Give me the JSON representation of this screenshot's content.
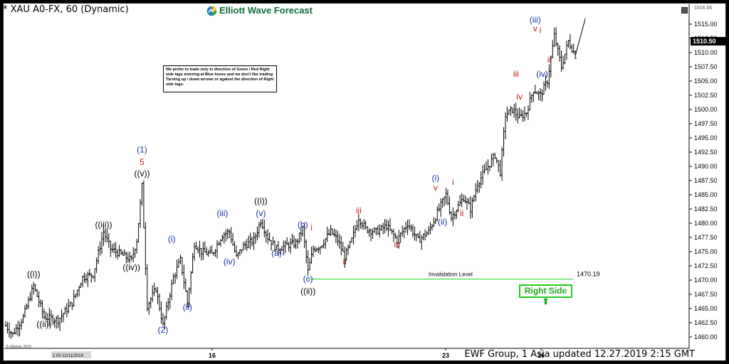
{
  "header": {
    "title": "* XAU A0-FX, 60 (Dynamic)",
    "brand": "Elliott Wave Forecast",
    "logo_icon": "ewf-logo-icon"
  },
  "note": "We prefer to trade only in direction of Green / Red Right side tags entering at Blue boxes and we don't like trading Turning up / down arrows or against the direction of Right side tags.",
  "invalidation": {
    "label": "Invalidation Level",
    "value": "1470.19"
  },
  "right_side": {
    "label": "Right Side",
    "icon": "up-arrow-icon",
    "color": "#1fd01f"
  },
  "footer": "EWF Group, 1 Asia  updated 12.27.2019 2:15 GMT",
  "price_tag": "1510.50",
  "top_price": "1516.56",
  "bottom_left": [
    "1:00 12/11/2019",
    "© eSignal, 2019"
  ],
  "colors": {
    "blue": "#1a2fa8",
    "red": "#c81e1e",
    "black": "#000000",
    "green": "#1fd01f"
  },
  "chart_data": {
    "type": "ohlc",
    "symbol": "XAU A0-FX",
    "interval": "60",
    "ylim": [
      1458.5,
      1517.5
    ],
    "y_ticks": [
      "1515.00",
      "1512.50",
      "1510.00",
      "1507.50",
      "1505.00",
      "1502.50",
      "1500.00",
      "1497.50",
      "1495.00",
      "1492.50",
      "1490.00",
      "1487.50",
      "1485.00",
      "1482.50",
      "1480.00",
      "1477.50",
      "1475.00",
      "1472.50",
      "1470.00",
      "1467.50",
      "1465.00",
      "1462.50",
      "1460.00"
    ],
    "x_ticks": [
      "16",
      "23",
      "26"
    ],
    "bar_count": 190,
    "path": [
      [
        0,
        1462.0
      ],
      [
        4,
        1460.5
      ],
      [
        10,
        1463.5
      ],
      [
        16,
        1469.0
      ],
      [
        22,
        1463.5
      ],
      [
        30,
        1463.0
      ],
      [
        38,
        1466.0
      ],
      [
        44,
        1470.5
      ],
      [
        50,
        1471.0
      ],
      [
        56,
        1478.5
      ],
      [
        60,
        1475.5
      ],
      [
        66,
        1474.5
      ],
      [
        72,
        1473.5
      ],
      [
        75,
        1477.0
      ],
      [
        78,
        1486.5
      ],
      [
        81,
        1465.5
      ],
      [
        86,
        1468.5
      ],
      [
        90,
        1462.0
      ],
      [
        96,
        1470.5
      ],
      [
        100,
        1473.5
      ],
      [
        104,
        1466.0
      ],
      [
        108,
        1476.5
      ],
      [
        112,
        1475.0
      ],
      [
        118,
        1474.5
      ],
      [
        124,
        1478.0
      ],
      [
        128,
        1478.5
      ],
      [
        132,
        1474.0
      ],
      [
        136,
        1476.0
      ],
      [
        142,
        1477.0
      ],
      [
        146,
        1480.5
      ],
      [
        150,
        1477.5
      ],
      [
        155,
        1475.5
      ],
      [
        160,
        1476.0
      ],
      [
        166,
        1476.5
      ],
      [
        170,
        1479.0
      ],
      [
        173,
        1471.5
      ],
      [
        176,
        1475.5
      ],
      [
        180,
        1476.0
      ],
      [
        186,
        1478.5
      ],
      [
        190,
        1477.0
      ],
      [
        194,
        1474.0
      ],
      [
        198,
        1477.0
      ],
      [
        202,
        1481.0
      ],
      [
        206,
        1479.0
      ],
      [
        212,
        1478.5
      ],
      [
        218,
        1479.5
      ],
      [
        224,
        1477.0
      ],
      [
        230,
        1480.0
      ],
      [
        236,
        1477.0
      ],
      [
        242,
        1478.5
      ],
      [
        248,
        1482.5
      ],
      [
        252,
        1485.0
      ],
      [
        255,
        1481.0
      ],
      [
        258,
        1482.5
      ],
      [
        262,
        1484.5
      ],
      [
        266,
        1482.5
      ],
      [
        270,
        1487.0
      ],
      [
        276,
        1490.0
      ],
      [
        280,
        1492.0
      ],
      [
        283,
        1489.0
      ],
      [
        286,
        1499.0
      ],
      [
        290,
        1500.0
      ],
      [
        294,
        1498.5
      ],
      [
        298,
        1499.5
      ],
      [
        302,
        1503.5
      ],
      [
        306,
        1502.5
      ],
      [
        310,
        1505.0
      ],
      [
        314,
        1513.0
      ],
      [
        318,
        1507.5
      ],
      [
        322,
        1512.0
      ],
      [
        326,
        1509.5
      ],
      [
        330,
        1514.5
      ]
    ],
    "gap_extension_until": 330,
    "invalidation_level": 1470.19,
    "wave_labels": [
      {
        "text": "((i))",
        "price": 1470.3,
        "idx": 16,
        "color": "black",
        "pos": "above"
      },
      {
        "text": "((ii))",
        "price": 1463.0,
        "idx": 22,
        "color": "black",
        "pos": "below"
      },
      {
        "text": "((iii))",
        "price": 1479.0,
        "idx": 56,
        "color": "black",
        "pos": "above"
      },
      {
        "text": "((iv))",
        "price": 1473.0,
        "idx": 72,
        "color": "black",
        "pos": "below"
      },
      {
        "text": "((v))",
        "price": 1488.0,
        "idx": 78,
        "color": "black",
        "pos": "above"
      },
      {
        "text": "5",
        "price": 1490.0,
        "idx": 78,
        "color": "red",
        "pos": "above"
      },
      {
        "text": "(1)",
        "price": 1492.2,
        "idx": 78,
        "color": "blue",
        "pos": "above"
      },
      {
        "text": "(i)",
        "price": 1476.5,
        "idx": 95,
        "color": "blue",
        "pos": "above"
      },
      {
        "text": "(2)",
        "price": 1462.0,
        "idx": 90,
        "color": "blue",
        "pos": "below"
      },
      {
        "text": "(ii)",
        "price": 1466.0,
        "idx": 104,
        "color": "blue",
        "pos": "below"
      },
      {
        "text": "(iii)",
        "price": 1481.0,
        "idx": 124,
        "color": "blue",
        "pos": "above"
      },
      {
        "text": "(iv)",
        "price": 1474.0,
        "idx": 128,
        "color": "blue",
        "pos": "below"
      },
      {
        "text": "(v)",
        "price": 1481.0,
        "idx": 146,
        "color": "blue",
        "pos": "above"
      },
      {
        "text": "((i))",
        "price": 1483.2,
        "idx": 146,
        "color": "black",
        "pos": "above"
      },
      {
        "text": "(a)",
        "price": 1475.5,
        "idx": 155,
        "color": "blue",
        "pos": "below"
      },
      {
        "text": "(b)",
        "price": 1479.0,
        "idx": 170,
        "color": "blue",
        "pos": "above"
      },
      {
        "text": "(c)",
        "price": 1471.0,
        "idx": 173,
        "color": "blue",
        "pos": "below"
      },
      {
        "text": "((ii))",
        "price": 1468.8,
        "idx": 173,
        "color": "black",
        "pos": "below"
      },
      {
        "text": "i",
        "price": 1478.5,
        "idx": 175,
        "color": "red",
        "pos": "above"
      },
      {
        "text": "ii",
        "price": 1474.0,
        "idx": 194,
        "color": "red",
        "pos": "below"
      },
      {
        "text": "iii",
        "price": 1481.5,
        "idx": 202,
        "color": "red",
        "pos": "above"
      },
      {
        "text": "iv",
        "price": 1477.0,
        "idx": 224,
        "color": "red",
        "pos": "below"
      },
      {
        "text": "(i)",
        "price": 1487.2,
        "idx": 246,
        "color": "blue",
        "pos": "above"
      },
      {
        "text": "v",
        "price": 1485.5,
        "idx": 246,
        "color": "red",
        "pos": "above"
      },
      {
        "text": "(ii)",
        "price": 1481.0,
        "idx": 250,
        "color": "blue",
        "pos": "below"
      },
      {
        "text": "i",
        "price": 1486.5,
        "idx": 256,
        "color": "red",
        "pos": "above"
      },
      {
        "text": "ii",
        "price": 1482.5,
        "idx": 261,
        "color": "red",
        "pos": "below"
      },
      {
        "text": "iii",
        "price": 1505.5,
        "idx": 292,
        "color": "red",
        "pos": "above"
      },
      {
        "text": "iv",
        "price": 1503.0,
        "idx": 294,
        "color": "red",
        "pos": "below"
      },
      {
        "text": "(iii)",
        "price": 1515.0,
        "idx": 303,
        "color": "blue",
        "pos": "above"
      },
      {
        "text": "v",
        "price": 1513.5,
        "idx": 303,
        "color": "red",
        "pos": "above"
      },
      {
        "text": "i",
        "price": 1513.2,
        "idx": 306,
        "color": "red",
        "pos": "above"
      },
      {
        "text": "(iv)",
        "price": 1507.0,
        "idx": 307,
        "color": "blue",
        "pos": "below"
      },
      {
        "text": "ii",
        "price": 1509.5,
        "idx": 311,
        "color": "red",
        "pos": "below"
      }
    ]
  }
}
